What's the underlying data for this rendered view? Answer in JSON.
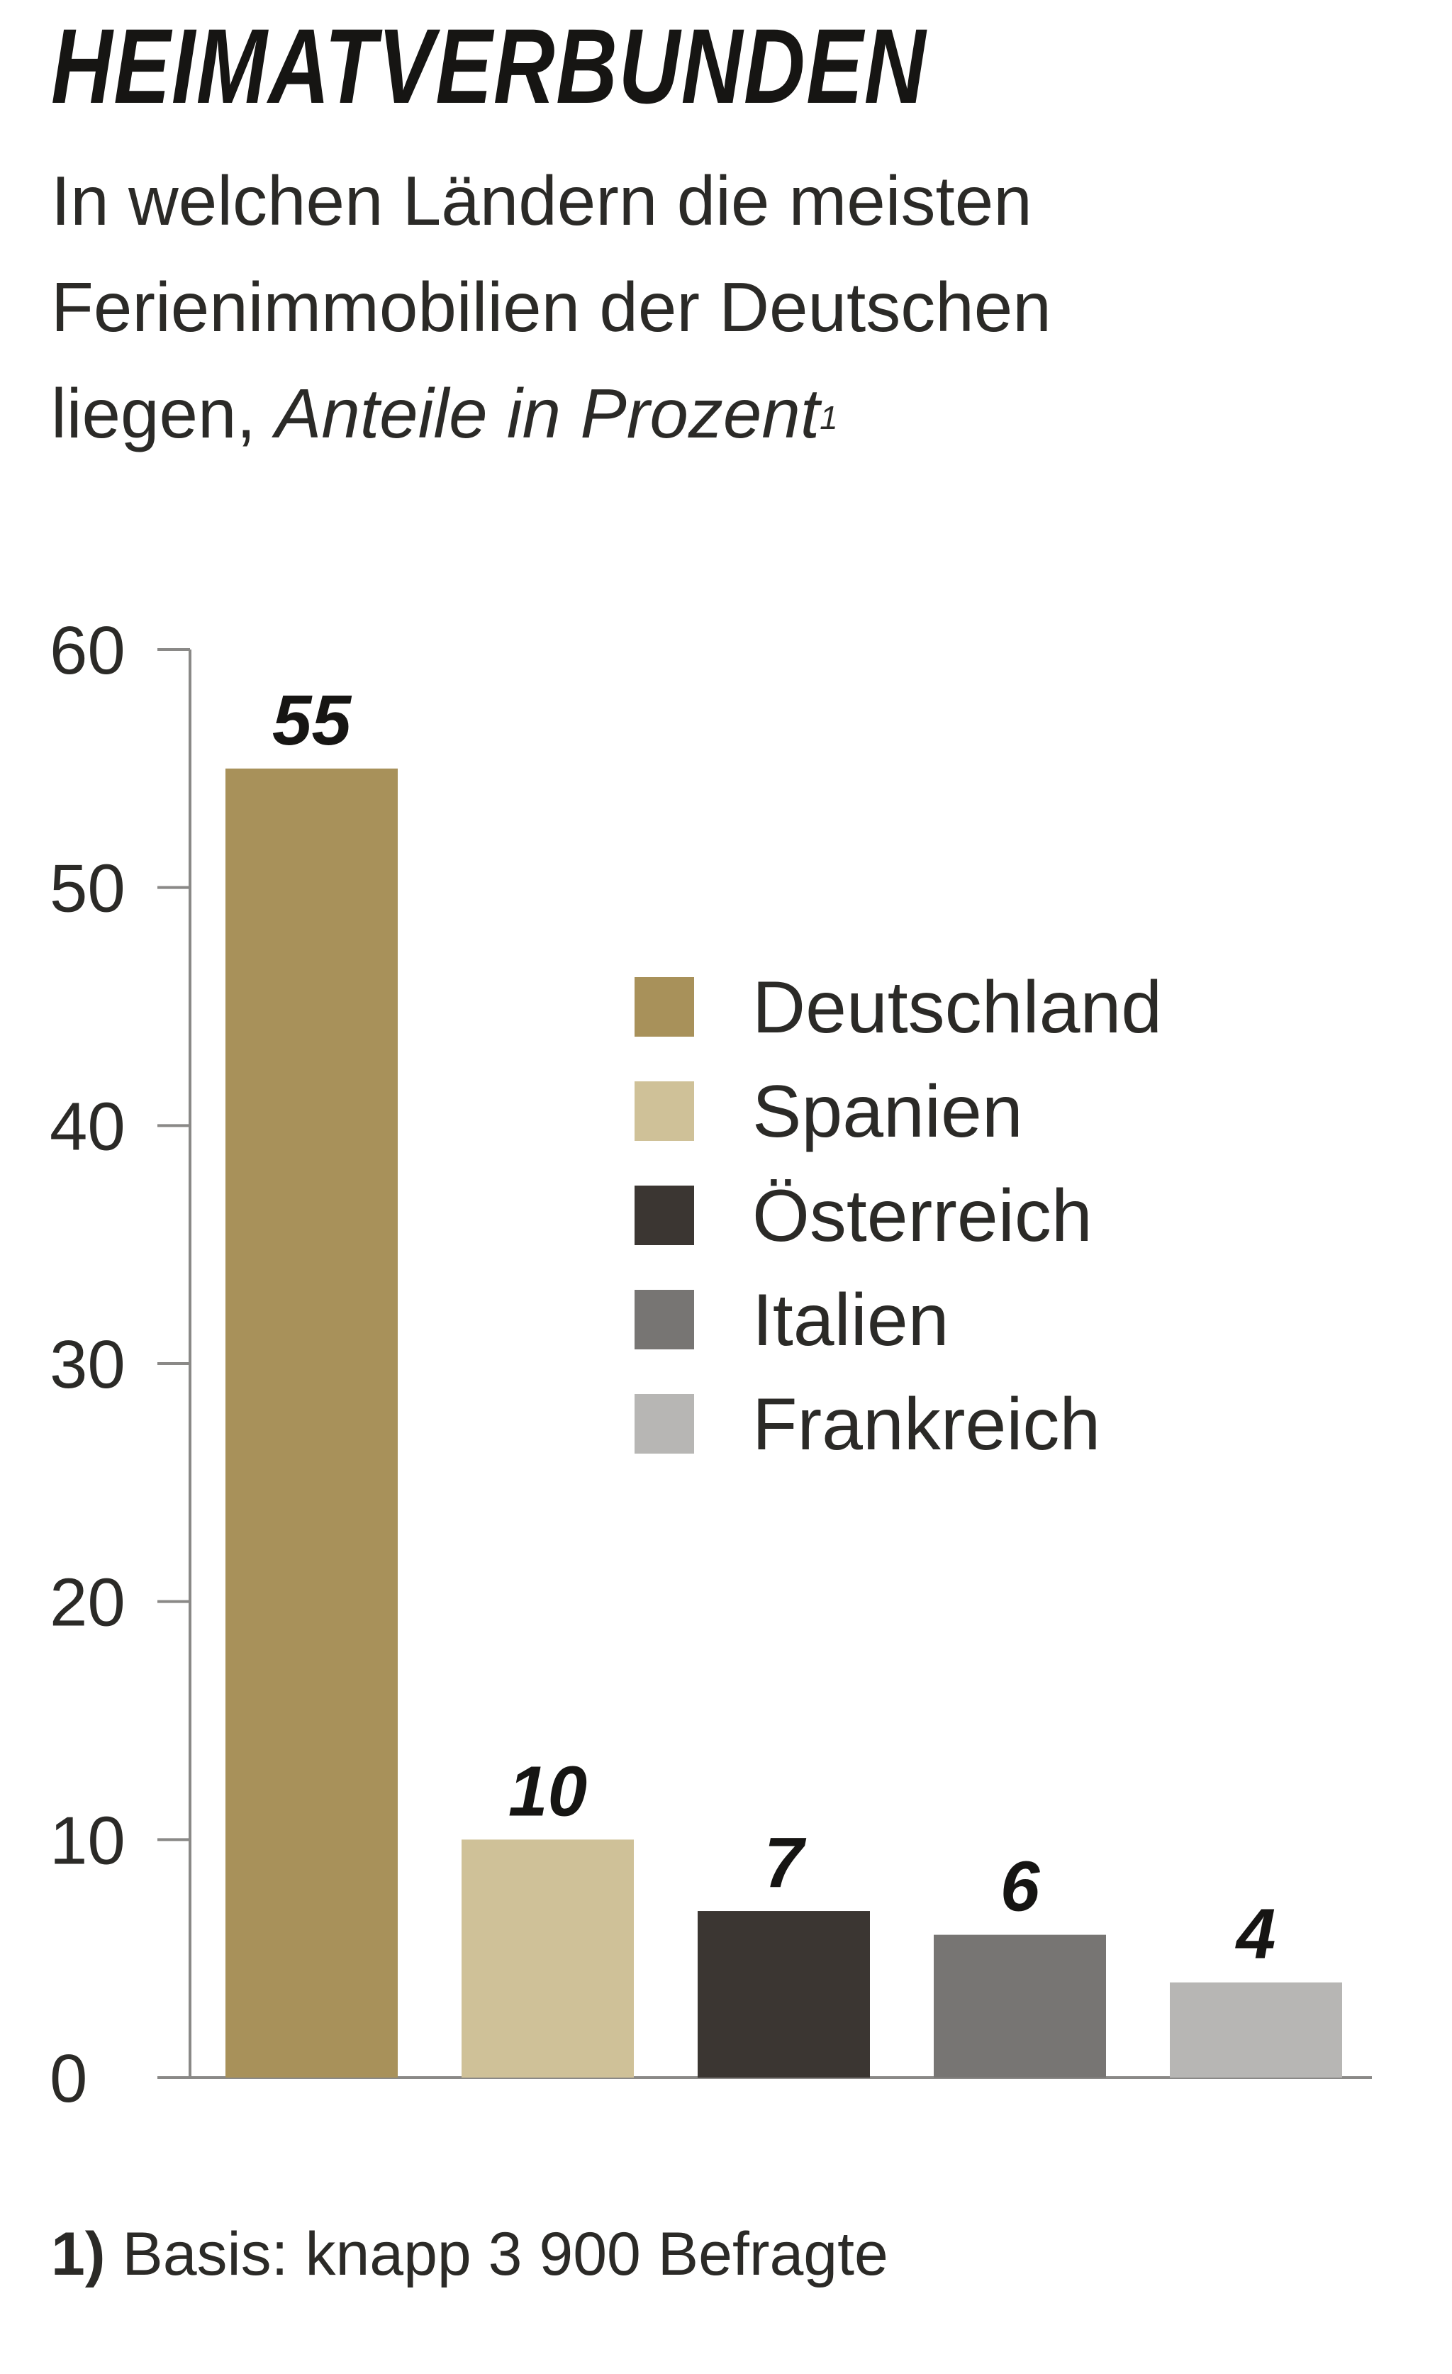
{
  "header": {
    "title": "HEIMATVERBUNDEN",
    "subtitle_line1": "In welchen Ländern die meisten",
    "subtitle_line2": "Ferienimmobilien der Deutschen",
    "subtitle_line3_prefix": "liegen, ",
    "subtitle_unit": "Anteile in Prozent",
    "subtitle_footnote_marker": "1"
  },
  "footnote": {
    "marker": "1)",
    "text": " Basis: knapp 3 900 Befragte"
  },
  "chart_data": {
    "type": "bar",
    "title": "HEIMATVERBUNDEN",
    "categories": [
      "Deutschland",
      "Spanien",
      "Österreich",
      "Italien",
      "Frankreich"
    ],
    "values": [
      55,
      10,
      7,
      6,
      4
    ],
    "data_labels": [
      "55",
      "10",
      "7",
      "6",
      "4"
    ],
    "colors": [
      "#a8915a",
      "#cfc198",
      "#3b3632",
      "#777573",
      "#b7b6b4"
    ],
    "ylim": [
      0,
      60
    ],
    "yticks": [
      0,
      10,
      20,
      30,
      40,
      50,
      60
    ],
    "ytick_labels": [
      "0",
      "10",
      "20",
      "30",
      "40",
      "50",
      "60"
    ],
    "xlabel": "",
    "ylabel": "",
    "grid": false,
    "legend": {
      "position": "center-right",
      "entries": [
        "Deutschland",
        "Spanien",
        "Österreich",
        "Italien",
        "Frankreich"
      ]
    }
  }
}
